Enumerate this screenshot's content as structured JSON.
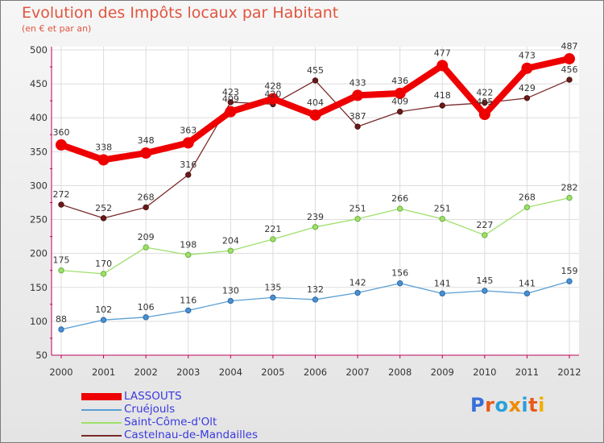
{
  "header": {
    "title": "Evolution des Impôts locaux par Habitant",
    "subtitle": "(en € et par an)"
  },
  "logo": {
    "text": "Proxiti"
  },
  "colors": {
    "lassouts": "#ee0000",
    "cruejouls": "#5a9fd4",
    "saint_come": "#9ee06a",
    "castelnau": "#7a2a2a",
    "axis": "#c0005a",
    "title": "#e0553f",
    "legend_text": "#3a3ae0"
  },
  "chart_data": {
    "type": "line",
    "title": "Evolution des Impôts locaux par Habitant",
    "subtitle": "(en € et par an)",
    "xlabel": "",
    "ylabel": "",
    "categories": [
      "2000",
      "2001",
      "2002",
      "2003",
      "2004",
      "2005",
      "2006",
      "2007",
      "2008",
      "2009",
      "2010",
      "2011",
      "2012"
    ],
    "ylim": [
      50,
      500
    ],
    "yticks": [
      50,
      100,
      150,
      200,
      250,
      300,
      350,
      400,
      450,
      500
    ],
    "grid": true,
    "legend_position": "bottom-left",
    "series": [
      {
        "name": "LASSOUTS",
        "key": "lassouts",
        "values": [
          360,
          338,
          348,
          363,
          409,
          428,
          404,
          433,
          436,
          477,
          405,
          473,
          487
        ]
      },
      {
        "name": "Cruéjouls",
        "key": "cruejouls",
        "values": [
          88,
          102,
          106,
          116,
          130,
          135,
          132,
          142,
          156,
          141,
          145,
          141,
          159
        ]
      },
      {
        "name": "Saint-Côme-d'Olt",
        "key": "saint_come",
        "values": [
          175,
          170,
          209,
          198,
          204,
          221,
          239,
          251,
          266,
          251,
          227,
          268,
          282
        ]
      },
      {
        "name": "Castelnau-de-Mandailles",
        "key": "castelnau",
        "values": [
          272,
          252,
          268,
          316,
          423,
          420,
          455,
          387,
          409,
          418,
          422,
          429,
          456
        ]
      }
    ]
  }
}
